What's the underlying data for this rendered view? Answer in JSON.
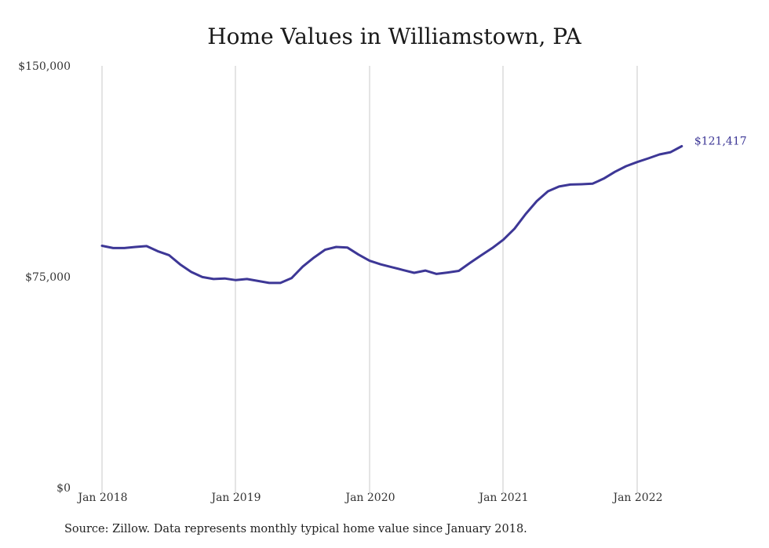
{
  "chart_data": {
    "type": "line",
    "title": "Home Values in Williamstown, PA",
    "xlabel": "",
    "ylabel": "",
    "ylim": [
      0,
      150000
    ],
    "y_ticks": [
      "$0",
      "$75,000",
      "$150,000"
    ],
    "y_tick_values": [
      0,
      75000,
      150000
    ],
    "x_ticks": [
      "Jan 2018",
      "Jan 2019",
      "Jan 2020",
      "Jan 2021",
      "Jan 2022"
    ],
    "grid": "vertical",
    "line_color": "#3d3796",
    "end_label": "$121,417",
    "series": [
      {
        "x": [
          "2018-01",
          "2018-02",
          "2018-03",
          "2018-04",
          "2018-05",
          "2018-06",
          "2018-07",
          "2018-08",
          "2018-09",
          "2018-10",
          "2018-11",
          "2018-12",
          "2019-01",
          "2019-02",
          "2019-03",
          "2019-04",
          "2019-05",
          "2019-06",
          "2019-07",
          "2019-08",
          "2019-09",
          "2019-10",
          "2019-11",
          "2019-12",
          "2020-01",
          "2020-02",
          "2020-03",
          "2020-04",
          "2020-05",
          "2020-06",
          "2020-07",
          "2020-08",
          "2020-09",
          "2020-10",
          "2020-11",
          "2020-12",
          "2021-01",
          "2021-02",
          "2021-03",
          "2021-04",
          "2021-05",
          "2021-06",
          "2021-07",
          "2021-08",
          "2021-09",
          "2021-10",
          "2021-11",
          "2021-12",
          "2022-01",
          "2022-02",
          "2022-03",
          "2022-04",
          "2022-05"
        ],
        "values": [
          86000,
          85200,
          85200,
          85600,
          85900,
          84100,
          82700,
          79400,
          76700,
          74900,
          74200,
          74400,
          73800,
          74200,
          73500,
          72800,
          72800,
          74500,
          78600,
          81800,
          84600,
          85600,
          85400,
          82900,
          80700,
          79400,
          78400,
          77400,
          76400,
          77200,
          76000,
          76500,
          77100,
          79900,
          82600,
          85200,
          88200,
          92100,
          97300,
          101900,
          105400,
          107100,
          107800,
          107900,
          108100,
          109900,
          112300,
          114300,
          115800,
          117100,
          118500,
          119300,
          121417
        ]
      }
    ]
  },
  "source_note": "Source: Zillow. Data represents monthly typical home value since January 2018."
}
